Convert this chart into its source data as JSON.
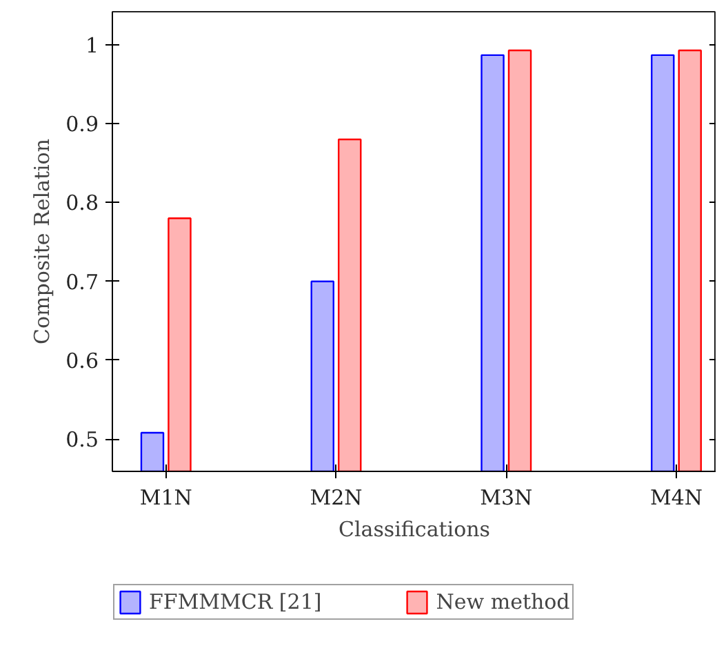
{
  "chart_data": {
    "type": "bar",
    "xlabel": "Classifications",
    "ylabel": "Composite Relation",
    "categories": [
      "M1N",
      "M2N",
      "M3N",
      "M4N"
    ],
    "series": [
      {
        "name": "FFMMMCR [21]",
        "color": "#b3b3ff",
        "values": [
          0.508,
          0.7,
          0.987,
          0.987
        ]
      },
      {
        "name": "New method",
        "color": "#ffb3b3",
        "values": [
          0.78,
          0.88,
          0.993,
          0.993
        ]
      }
    ],
    "ylim": [
      0.459,
      1.042
    ],
    "yticks": [
      0.5,
      0.6,
      0.7,
      0.8,
      0.9,
      1
    ],
    "grid": false,
    "legend": "bottom"
  }
}
